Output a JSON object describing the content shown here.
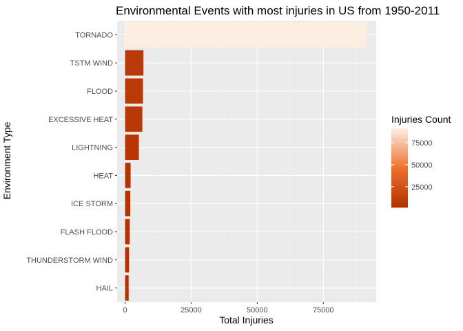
{
  "chart_data": {
    "type": "bar",
    "orientation": "horizontal",
    "title": "Environmental Events with most injuries in US from 1950-2011",
    "xlabel": "Total Injuries",
    "ylabel": "Environment Type",
    "categories": [
      "TORNADO",
      "TSTM WIND",
      "FLOOD",
      "EXCESSIVE HEAT",
      "LIGHTNING",
      "HEAT",
      "ICE STORM",
      "FLASH FLOOD",
      "THUNDERSTORM WIND",
      "HAIL"
    ],
    "values": [
      91346,
      6957,
      6789,
      6525,
      5230,
      2100,
      1975,
      1777,
      1488,
      1361
    ],
    "xlim": [
      -3000,
      95000
    ],
    "xticks": [
      0,
      25000,
      50000,
      75000
    ],
    "xtick_labels": [
      "0",
      "25000",
      "50000",
      "75000"
    ],
    "grid": true,
    "legend": {
      "title": "Injuries Count",
      "position": "right",
      "type": "colorbar",
      "range": [
        1361,
        91346
      ],
      "ticks": [
        25000,
        50000,
        75000
      ],
      "tick_labels": [
        "25000",
        "50000",
        "75000"
      ],
      "color_low": "#b23200",
      "color_mid": "#ee7130",
      "color_high": "#fdeee2"
    },
    "colors": {
      "panel_bg": "#ebebeb",
      "grid_major": "#ffffff",
      "tick_text": "#4d4d4d"
    }
  }
}
